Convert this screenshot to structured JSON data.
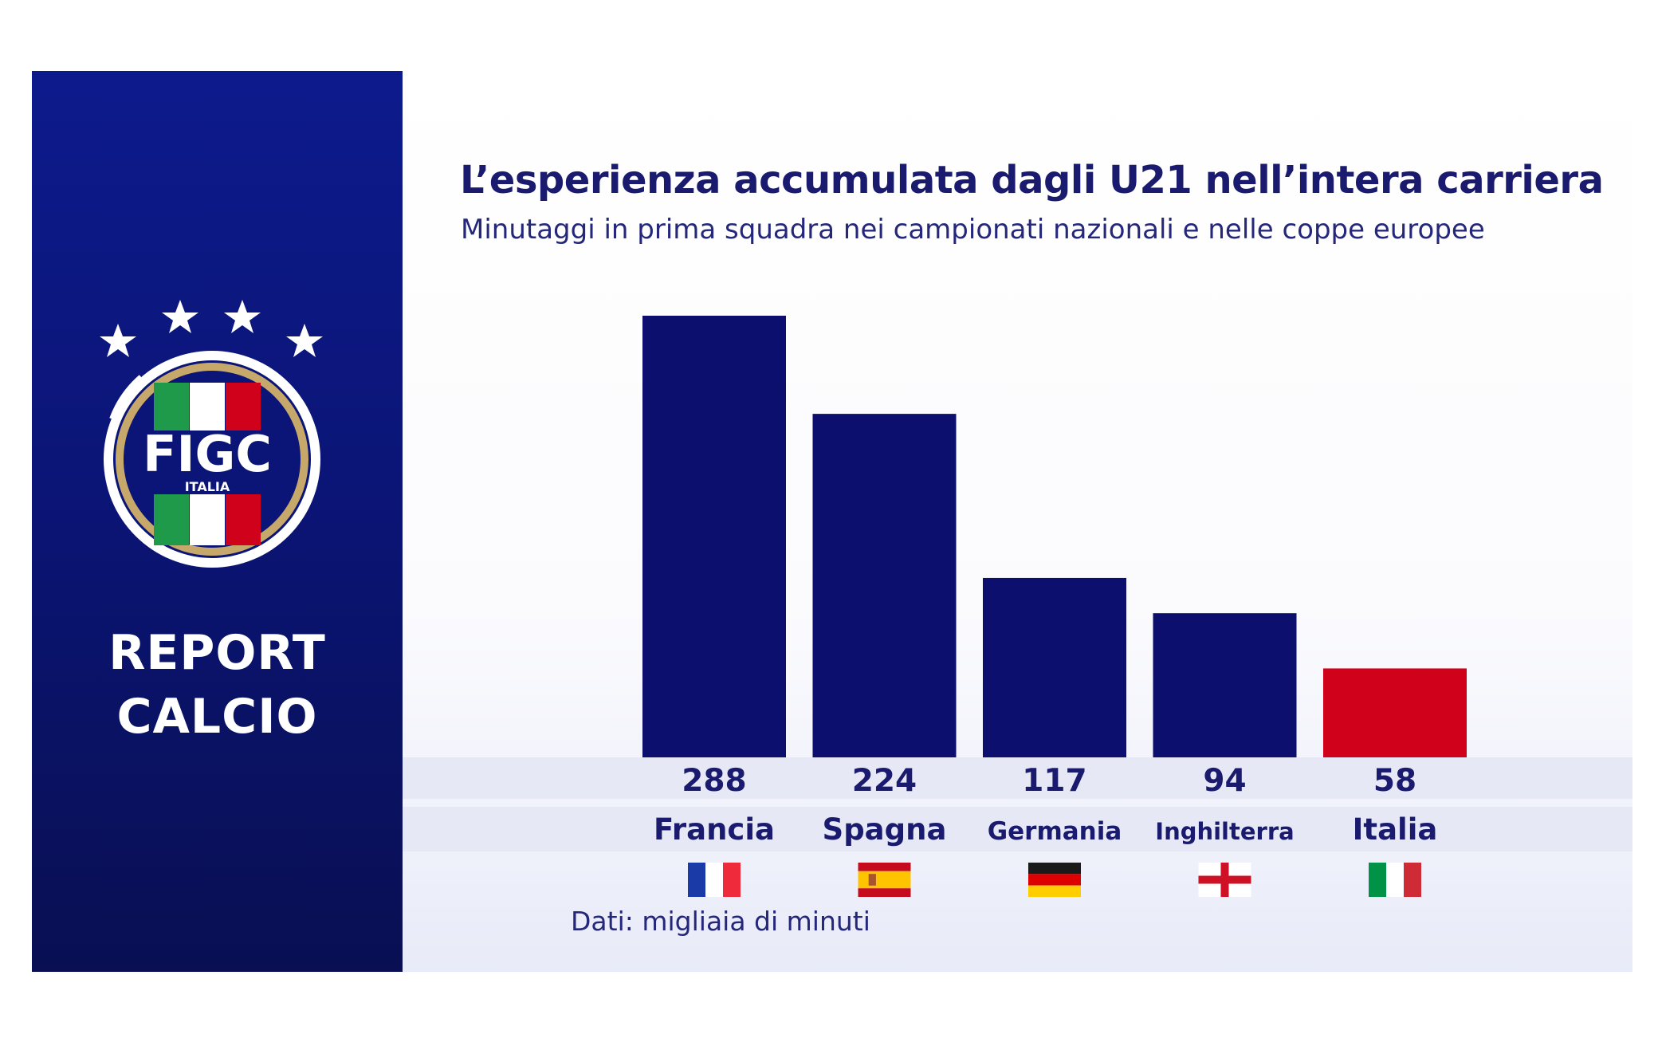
{
  "sidebar": {
    "logo": {
      "brand": "FIGC",
      "subtitle": "ITALIA"
    },
    "report_line_1": "REPORT",
    "report_line_2": "CALCIO",
    "colors": {
      "bg_top": "#0d1a8c",
      "bg_bottom": "#090f52"
    }
  },
  "chart_data": {
    "type": "bar",
    "title": "L’esperienza accumulata dagli U21 nell’intera carriera",
    "subtitle": "Minutaggi in prima squadra nei campionati nazionali e nelle coppe europee",
    "categories": [
      "Francia",
      "Spagna",
      "Germania",
      "Inghilterra",
      "Italia"
    ],
    "values": [
      288,
      224,
      117,
      94,
      58
    ],
    "ylim": [
      0,
      300
    ],
    "bar_colors": [
      "#0c0f6e",
      "#0c0f6e",
      "#0c0f6e",
      "#0c0f6e",
      "#d0021b"
    ],
    "flags": [
      "flag-france-icon",
      "flag-spain-icon",
      "flag-germany-icon",
      "flag-england-icon",
      "flag-italy-icon"
    ],
    "grid": false,
    "legend": "none",
    "note": "Dati: migliaia di minuti"
  }
}
